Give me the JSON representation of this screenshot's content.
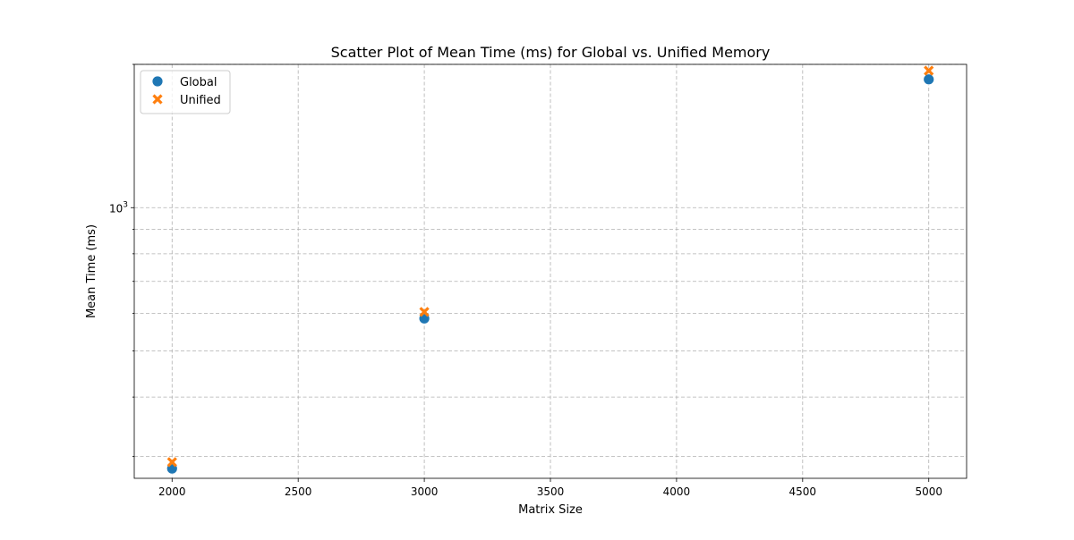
{
  "chart_data": {
    "type": "scatter",
    "title": "Scatter Plot of Mean Time (ms) for Global vs. Unified Memory",
    "xlabel": "Matrix Size",
    "ylabel": "Mean Time (ms)",
    "xlim": [
      1850,
      5150
    ],
    "ylim": [
      270,
      2000
    ],
    "yscale": "log",
    "grid": true,
    "legend_position": "top-left",
    "x_ticks": [
      2000,
      2500,
      3000,
      3500,
      4000,
      4500,
      5000
    ],
    "x_tick_labels": [
      "2000",
      "2500",
      "3000",
      "3500",
      "4000",
      "4500",
      "5000"
    ],
    "y_major_ticks": [
      1000
    ],
    "y_major_tick_labels": [
      {
        "base": "10",
        "exp": "3"
      }
    ],
    "y_minor_ticks": [
      300,
      400,
      500,
      600,
      700,
      800,
      900,
      2000
    ],
    "series": [
      {
        "name": "Global",
        "marker": "circle",
        "color": "#1f77b4",
        "x": [
          2000,
          3000,
          5000
        ],
        "y": [
          283,
          585,
          1860
        ]
      },
      {
        "name": "Unified",
        "marker": "x",
        "color": "#ff7f0e",
        "x": [
          2000,
          3000,
          5000
        ],
        "y": [
          292,
          604,
          1940
        ]
      }
    ]
  }
}
